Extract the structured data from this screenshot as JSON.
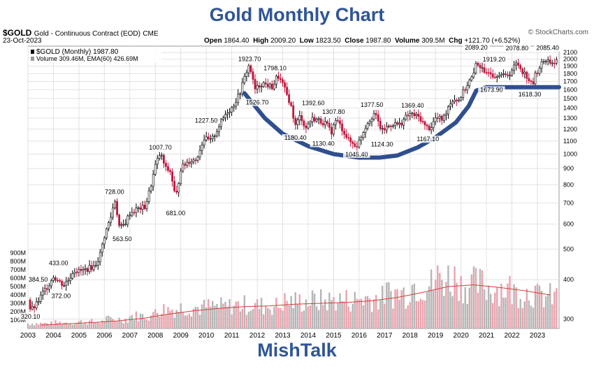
{
  "title": "Gold Monthly Chart",
  "footer": "MishTalk",
  "header": {
    "symbol": "$GOLD",
    "description": "Gold - Continuous Contract (EOD)",
    "exchange": "CME",
    "date": "23-Oct-2023",
    "open_label": "Open",
    "open": "1864.40",
    "high_label": "High",
    "high": "2009.20",
    "low_label": "Low",
    "low": "1823.50",
    "close_label": "Close",
    "close": "1987.80",
    "volume_label": "Volume",
    "volume": "309.5M",
    "chg_label": "Chg",
    "chg": "+121.70 (+6.52%)",
    "credit": "© StockCharts.com"
  },
  "legend": {
    "price": "$GOLD (Monthly) 1987.80",
    "volume": "Volume 309.46M, EMA(60) 426.69M"
  },
  "colors": {
    "up": "#000000",
    "down": "#c0143c",
    "cup": "#2f4f8f",
    "ema": "#d63a3a",
    "vol_up": "#b5b5b5",
    "vol_down": "#e8a3ad",
    "title": "#2f5597"
  },
  "chart_data": {
    "type": "line",
    "title": "Gold Monthly Chart",
    "x_range": [
      2003.0,
      2023.85
    ],
    "y_scale": "log",
    "y_range": [
      280,
      2200
    ],
    "price_ticks": [
      300,
      400,
      500,
      600,
      700,
      800,
      900,
      1000,
      1100,
      1200,
      1300,
      1400,
      1500,
      1600,
      1700,
      1800,
      1900,
      2000,
      2100
    ],
    "year_ticks": [
      "2003",
      "2004",
      "2005",
      "2006",
      "2007",
      "2008",
      "2009",
      "2010",
      "2011",
      "2012",
      "2013",
      "2014",
      "2015",
      "2016",
      "2017",
      "2018",
      "2019",
      "2020",
      "2021",
      "2022",
      "2023"
    ],
    "volume_ticks": [
      "100M",
      "200M",
      "300M",
      "400M",
      "500M",
      "600M",
      "700M",
      "800M",
      "900M"
    ],
    "volume_range": [
      0,
      1000
    ],
    "price_series": {
      "name": "$GOLD (Monthly)",
      "points": [
        [
          2003.0,
          345
        ],
        [
          2003.1,
          320
        ],
        [
          2003.3,
          330
        ],
        [
          2003.6,
          365
        ],
        [
          2003.8,
          384
        ],
        [
          2004.0,
          410
        ],
        [
          2004.2,
          395
        ],
        [
          2004.4,
          385
        ],
        [
          2004.6,
          400
        ],
        [
          2004.8,
          430
        ],
        [
          2005.0,
          425
        ],
        [
          2005.2,
          428
        ],
        [
          2005.4,
          435
        ],
        [
          2005.6,
          440
        ],
        [
          2005.8,
          470
        ],
        [
          2006.0,
          550
        ],
        [
          2006.3,
          650
        ],
        [
          2006.4,
          728
        ],
        [
          2006.6,
          580
        ],
        [
          2006.8,
          600
        ],
        [
          2007.0,
          650
        ],
        [
          2007.3,
          670
        ],
        [
          2007.6,
          680
        ],
        [
          2007.8,
          780
        ],
        [
          2008.0,
          920
        ],
        [
          2008.2,
          1007
        ],
        [
          2008.4,
          900
        ],
        [
          2008.6,
          880
        ],
        [
          2008.8,
          720
        ],
        [
          2009.0,
          900
        ],
        [
          2009.3,
          950
        ],
        [
          2009.6,
          960
        ],
        [
          2009.9,
          1120
        ],
        [
          2010.2,
          1100
        ],
        [
          2010.5,
          1230
        ],
        [
          2010.8,
          1360
        ],
        [
          2011.0,
          1400
        ],
        [
          2011.3,
          1550
        ],
        [
          2011.6,
          1850
        ],
        [
          2011.7,
          1923
        ],
        [
          2011.9,
          1600
        ],
        [
          2012.2,
          1680
        ],
        [
          2012.6,
          1630
        ],
        [
          2012.8,
          1780
        ],
        [
          2013.0,
          1660
        ],
        [
          2013.3,
          1450
        ],
        [
          2013.5,
          1230
        ],
        [
          2013.7,
          1330
        ],
        [
          2013.9,
          1200
        ],
        [
          2014.0,
          1250
        ],
        [
          2014.2,
          1300
        ],
        [
          2014.4,
          1280
        ],
        [
          2014.7,
          1250
        ],
        [
          2014.9,
          1170
        ],
        [
          2015.1,
          1290
        ],
        [
          2015.4,
          1180
        ],
        [
          2015.6,
          1100
        ],
        [
          2015.9,
          1060
        ],
        [
          2016.0,
          1100
        ],
        [
          2016.3,
          1250
        ],
        [
          2016.6,
          1350
        ],
        [
          2016.9,
          1180
        ],
        [
          2017.0,
          1200
        ],
        [
          2017.3,
          1250
        ],
        [
          2017.6,
          1240
        ],
        [
          2017.8,
          1300
        ],
        [
          2018.0,
          1340
        ],
        [
          2018.2,
          1325
        ],
        [
          2018.4,
          1300
        ],
        [
          2018.6,
          1220
        ],
        [
          2018.8,
          1210
        ],
        [
          2019.0,
          1300
        ],
        [
          2019.3,
          1290
        ],
        [
          2019.5,
          1420
        ],
        [
          2019.7,
          1500
        ],
        [
          2019.9,
          1480
        ],
        [
          2020.1,
          1580
        ],
        [
          2020.3,
          1690
        ],
        [
          2020.5,
          1780
        ],
        [
          2020.6,
          1970
        ],
        [
          2020.8,
          1880
        ],
        [
          2020.9,
          1780
        ],
        [
          2021.1,
          1850
        ],
        [
          2021.3,
          1770
        ],
        [
          2021.5,
          1810
        ],
        [
          2021.7,
          1760
        ],
        [
          2021.9,
          1800
        ],
        [
          2022.1,
          1900
        ],
        [
          2022.2,
          1950
        ],
        [
          2022.4,
          1840
        ],
        [
          2022.6,
          1760
        ],
        [
          2022.8,
          1640
        ],
        [
          2022.9,
          1770
        ],
        [
          2023.1,
          1900
        ],
        [
          2023.3,
          2000
        ],
        [
          2023.5,
          1960
        ],
        [
          2023.7,
          1950
        ],
        [
          2023.8,
          1987.8
        ]
      ]
    },
    "price_labels": [
      {
        "x": 2003.1,
        "y": 320.1,
        "text": "320.10",
        "pos": "below"
      },
      {
        "x": 2003.4,
        "y": 384.5,
        "text": "384.50",
        "pos": "above"
      },
      {
        "x": 2004.2,
        "y": 433.0,
        "text": "433.00",
        "pos": "above"
      },
      {
        "x": 2004.3,
        "y": 372.0,
        "text": "372.00",
        "pos": "below"
      },
      {
        "x": 2006.4,
        "y": 728.0,
        "text": "728.00",
        "pos": "above"
      },
      {
        "x": 2006.7,
        "y": 563.5,
        "text": "563.50",
        "pos": "below"
      },
      {
        "x": 2008.2,
        "y": 1007.7,
        "text": "1007.70",
        "pos": "above"
      },
      {
        "x": 2008.8,
        "y": 681.0,
        "text": "681.00",
        "pos": "below"
      },
      {
        "x": 2010.0,
        "y": 1227.5,
        "text": "1227.50",
        "pos": "above"
      },
      {
        "x": 2011.7,
        "y": 1923.7,
        "text": "1923.70",
        "pos": "above"
      },
      {
        "x": 2012.0,
        "y": 1526.7,
        "text": "1526.70",
        "pos": "below"
      },
      {
        "x": 2012.7,
        "y": 1798.1,
        "text": "1798.10",
        "pos": "above"
      },
      {
        "x": 2013.5,
        "y": 1180.4,
        "text": "1180.40",
        "pos": "below"
      },
      {
        "x": 2014.2,
        "y": 1392.6,
        "text": "1392.60",
        "pos": "above"
      },
      {
        "x": 2014.6,
        "y": 1130.4,
        "text": "1130.40",
        "pos": "below"
      },
      {
        "x": 2015.0,
        "y": 1307.8,
        "text": "1307.80",
        "pos": "above"
      },
      {
        "x": 2015.9,
        "y": 1045.4,
        "text": "1045.40",
        "pos": "below"
      },
      {
        "x": 2016.5,
        "y": 1377.5,
        "text": "1377.50",
        "pos": "above"
      },
      {
        "x": 2016.9,
        "y": 1124.3,
        "text": "1124.30",
        "pos": "below"
      },
      {
        "x": 2018.1,
        "y": 1369.4,
        "text": "1369.40",
        "pos": "above"
      },
      {
        "x": 2018.7,
        "y": 1167.1,
        "text": "1167.10",
        "pos": "below"
      },
      {
        "x": 2020.6,
        "y": 2089.2,
        "text": "2089.20",
        "pos": "above"
      },
      {
        "x": 2021.3,
        "y": 1919.2,
        "text": "1919.20",
        "pos": "above"
      },
      {
        "x": 2021.2,
        "y": 1673.9,
        "text": "1673.90",
        "pos": "below"
      },
      {
        "x": 2022.2,
        "y": 2078.8,
        "text": "2078.80",
        "pos": "above"
      },
      {
        "x": 2022.7,
        "y": 1618.3,
        "text": "1618.30",
        "pos": "below"
      },
      {
        "x": 2023.4,
        "y": 2085.4,
        "text": "2085.40",
        "pos": "above"
      }
    ],
    "cup_line": {
      "name": "cup and handle",
      "points": [
        [
          2011.5,
          1560
        ],
        [
          2012.3,
          1300
        ],
        [
          2013.0,
          1160
        ],
        [
          2014.0,
          1060
        ],
        [
          2015.0,
          1000
        ],
        [
          2016.0,
          975
        ],
        [
          2016.8,
          975
        ],
        [
          2017.5,
          990
        ],
        [
          2018.3,
          1050
        ],
        [
          2019.0,
          1130
        ],
        [
          2019.8,
          1260
        ],
        [
          2020.3,
          1420
        ],
        [
          2020.6,
          1590
        ],
        [
          2021.0,
          1630
        ],
        [
          2022.0,
          1630
        ],
        [
          2023.85,
          1630
        ]
      ]
    },
    "volume_series": {
      "name": "Volume",
      "ema_name": "EMA(60)",
      "years": [
        2003,
        2004,
        2005,
        2006,
        2007,
        2008,
        2009,
        2010,
        2011,
        2012,
        2013,
        2014,
        2015,
        2016,
        2017,
        2018,
        2019,
        2020,
        2021,
        2022,
        2023
      ],
      "typical": [
        60,
        70,
        80,
        110,
        150,
        230,
        250,
        260,
        280,
        270,
        320,
        330,
        340,
        360,
        420,
        520,
        600,
        520,
        480,
        430,
        380
      ],
      "ema": [
        40,
        55,
        70,
        90,
        120,
        170,
        210,
        240,
        260,
        270,
        290,
        300,
        310,
        330,
        370,
        430,
        500,
        520,
        490,
        450,
        400
      ]
    }
  }
}
